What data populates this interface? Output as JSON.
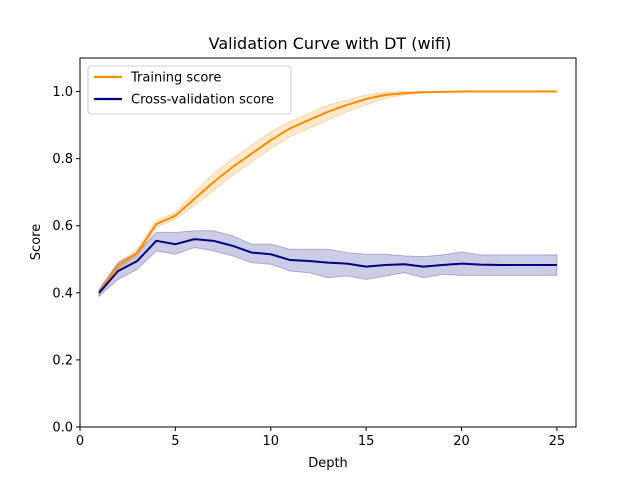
{
  "chart_data": {
    "type": "line",
    "title": "Validation Curve with DT (wifi)",
    "xlabel": "Depth",
    "ylabel": "Score",
    "xlim": [
      0,
      26
    ],
    "ylim": [
      0.0,
      1.1
    ],
    "xticks": [
      0,
      5,
      10,
      15,
      20,
      25
    ],
    "yticks": [
      0.0,
      0.2,
      0.4,
      0.6,
      0.8,
      1.0
    ],
    "legend_position": "upper-left",
    "x": [
      1,
      2,
      3,
      4,
      5,
      6,
      7,
      8,
      9,
      10,
      11,
      12,
      13,
      14,
      15,
      16,
      17,
      18,
      19,
      20,
      21,
      22,
      23,
      24,
      25
    ],
    "series": [
      {
        "name": "Training score",
        "color": "#ff8c00",
        "band_color": "#ff8c00",
        "values": [
          0.4,
          0.48,
          0.52,
          0.605,
          0.63,
          0.68,
          0.73,
          0.775,
          0.815,
          0.855,
          0.89,
          0.915,
          0.94,
          0.96,
          0.978,
          0.99,
          0.995,
          0.998,
          0.999,
          1.0,
          1.0,
          1.0,
          1.0,
          1.0,
          1.0
        ],
        "lower": [
          0.39,
          0.47,
          0.51,
          0.595,
          0.62,
          0.66,
          0.705,
          0.75,
          0.79,
          0.83,
          0.865,
          0.89,
          0.915,
          0.94,
          0.96,
          0.98,
          0.99,
          0.996,
          0.998,
          0.999,
          1.0,
          1.0,
          1.0,
          1.0,
          1.0
        ],
        "upper": [
          0.41,
          0.49,
          0.53,
          0.615,
          0.64,
          0.7,
          0.755,
          0.8,
          0.84,
          0.88,
          0.91,
          0.935,
          0.96,
          0.975,
          0.99,
          0.998,
          1.0,
          1.0,
          1.0,
          1.0,
          1.0,
          1.0,
          1.0,
          1.0,
          1.0
        ]
      },
      {
        "name": "Cross-validation score",
        "color": "#000080",
        "band_color": "#000080",
        "values": [
          0.4,
          0.465,
          0.495,
          0.555,
          0.545,
          0.56,
          0.555,
          0.54,
          0.52,
          0.515,
          0.498,
          0.495,
          0.49,
          0.487,
          0.478,
          0.483,
          0.485,
          0.478,
          0.483,
          0.487,
          0.484,
          0.483,
          0.483,
          0.483,
          0.483
        ],
        "lower": [
          0.39,
          0.44,
          0.47,
          0.525,
          0.515,
          0.535,
          0.525,
          0.51,
          0.49,
          0.485,
          0.465,
          0.46,
          0.445,
          0.45,
          0.44,
          0.45,
          0.46,
          0.445,
          0.455,
          0.452,
          0.452,
          0.452,
          0.452,
          0.452,
          0.452
        ],
        "upper": [
          0.41,
          0.49,
          0.52,
          0.58,
          0.58,
          0.585,
          0.585,
          0.57,
          0.545,
          0.545,
          0.53,
          0.53,
          0.53,
          0.52,
          0.515,
          0.515,
          0.51,
          0.508,
          0.513,
          0.522,
          0.513,
          0.513,
          0.513,
          0.513,
          0.513
        ]
      }
    ]
  }
}
